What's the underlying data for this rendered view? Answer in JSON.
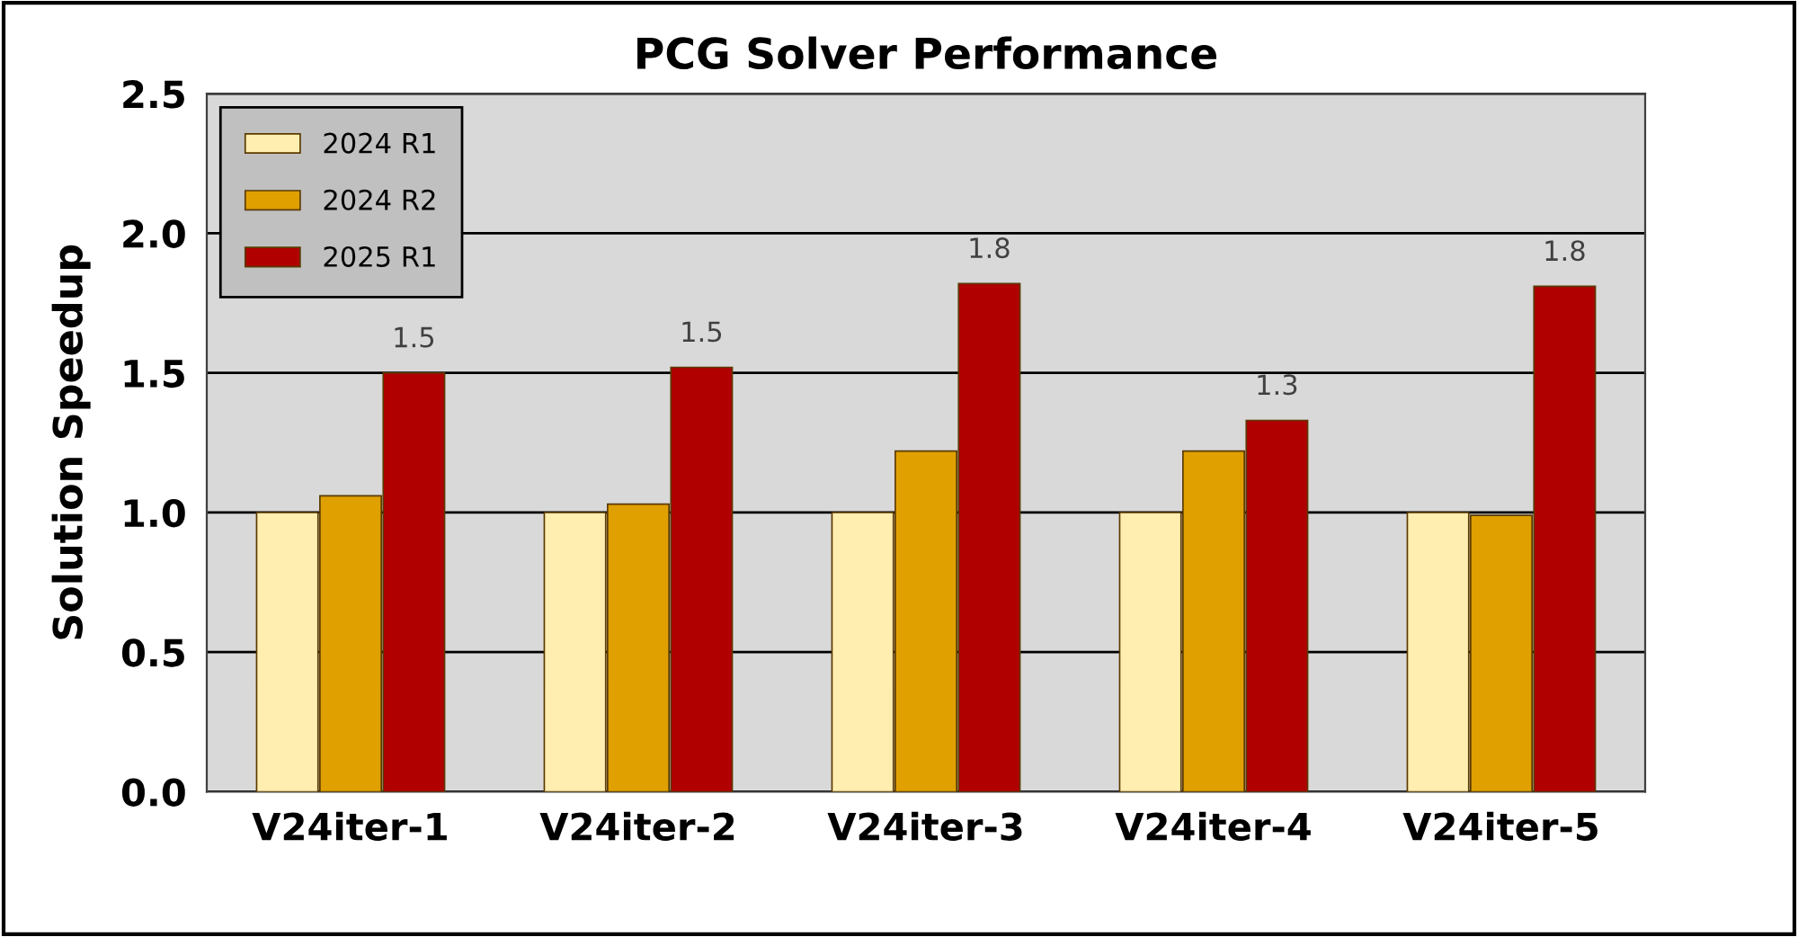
{
  "chart_data": {
    "type": "bar",
    "title": "PCG Solver Performance",
    "ylabel": "Solution Speedup",
    "categories": [
      "V24iter-1",
      "V24iter-2",
      "V24iter-3",
      "V24iter-4",
      "V24iter-5"
    ],
    "series": [
      {
        "name": "2024 R1",
        "color": "#ffeeb0",
        "values": [
          1.0,
          1.0,
          1.0,
          1.0,
          1.0
        ]
      },
      {
        "name": "2024 R2",
        "color": "#e0a000",
        "values": [
          1.06,
          1.03,
          1.22,
          1.22,
          0.99
        ]
      },
      {
        "name": "2025 R1",
        "color": "#b00000",
        "values": [
          1.5,
          1.52,
          1.82,
          1.33,
          1.81
        ],
        "value_labels": [
          "1.5",
          "1.5",
          "1.8",
          "1.3",
          "1.8"
        ]
      }
    ],
    "ylim": [
      0,
      2.5
    ],
    "yticks": [
      "0.0",
      "0.5",
      "1.0",
      "1.5",
      "2.0",
      "2.5"
    ],
    "grid": "y",
    "legend": "top left"
  }
}
